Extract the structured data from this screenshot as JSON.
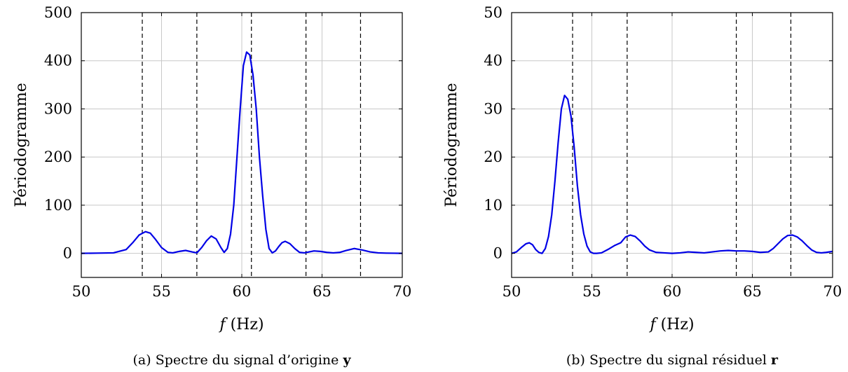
{
  "chart_data": [
    {
      "type": "line",
      "ylabel": "Périodogramme",
      "xlabel_var": "f",
      "xlabel_unit": " (Hz)",
      "caption_prefix": "(a) Spectre du signal d’origine ",
      "caption_symbol": "y",
      "xlim": [
        50,
        70
      ],
      "ylim": [
        -50,
        500
      ],
      "xticks": [
        50,
        55,
        60,
        65,
        70
      ],
      "yticks": [
        0,
        100,
        200,
        300,
        400,
        500
      ],
      "grid": true,
      "line_color": "#0000e6",
      "dashed_lines_x": [
        53.8,
        57.2,
        60.6,
        64.0,
        67.4
      ],
      "series": [
        {
          "x": [
            50,
            51,
            52,
            52.8,
            53.2,
            53.6,
            54.0,
            54.3,
            54.6,
            55.0,
            55.4,
            55.7,
            56.1,
            56.5,
            56.9,
            57.2,
            57.5,
            57.8,
            58.1,
            58.4,
            58.7,
            58.9,
            59.1,
            59.3,
            59.5,
            59.7,
            59.9,
            60.1,
            60.3,
            60.5,
            60.7,
            60.9,
            61.1,
            61.3,
            61.5,
            61.7,
            61.9,
            62.1,
            62.3,
            62.5,
            62.7,
            63.0,
            63.3,
            63.6,
            63.9,
            64.2,
            64.5,
            64.9,
            65.3,
            65.7,
            66.1,
            66.5,
            67.0,
            67.5,
            68.0,
            68.5,
            69.0,
            69.5,
            70
          ],
          "y": [
            0,
            0.5,
            1,
            8,
            22,
            38,
            45,
            42,
            30,
            12,
            2,
            1,
            4,
            6,
            3,
            1,
            12,
            26,
            36,
            30,
            12,
            2,
            10,
            40,
            100,
            200,
            300,
            390,
            418,
            412,
            370,
            300,
            200,
            120,
            50,
            10,
            1,
            5,
            14,
            22,
            25,
            20,
            10,
            2,
            1,
            3,
            5,
            4,
            2,
            1,
            2,
            6,
            10,
            7,
            3,
            1,
            0.5,
            0.3,
            0
          ]
        }
      ]
    },
    {
      "type": "line",
      "ylabel": "Périodogramme",
      "xlabel_var": "f",
      "xlabel_unit": " (Hz)",
      "caption_prefix": "(b) Spectre du signal résiduel ",
      "caption_symbol": "r",
      "xlim": [
        50,
        70
      ],
      "ylim": [
        -5,
        50
      ],
      "xticks": [
        50,
        55,
        60,
        65,
        70
      ],
      "yticks": [
        0,
        10,
        20,
        30,
        40,
        50
      ],
      "grid": true,
      "line_color": "#0000e6",
      "dashed_lines_x": [
        53.8,
        57.2,
        64.0,
        67.4
      ],
      "series": [
        {
          "x": [
            50,
            50.3,
            50.6,
            50.9,
            51.1,
            51.3,
            51.5,
            51.7,
            51.9,
            52.1,
            52.3,
            52.5,
            52.7,
            52.9,
            53.1,
            53.3,
            53.5,
            53.7,
            53.9,
            54.1,
            54.3,
            54.5,
            54.7,
            54.9,
            55.1,
            55.3,
            55.6,
            56.0,
            56.4,
            56.8,
            57.1,
            57.4,
            57.7,
            58.0,
            58.3,
            58.6,
            59.0,
            59.5,
            60.0,
            60.5,
            61.0,
            61.5,
            62.0,
            62.5,
            63.0,
            63.5,
            64.0,
            64.5,
            65.0,
            65.5,
            66.0,
            66.3,
            66.6,
            66.9,
            67.2,
            67.5,
            67.8,
            68.1,
            68.4,
            68.7,
            69.0,
            69.3,
            69.6,
            70
          ],
          "y": [
            0,
            0.3,
            1.2,
            2.0,
            2.2,
            1.8,
            0.8,
            0.2,
            0,
            1.0,
            3.5,
            8,
            15,
            23,
            30,
            32.8,
            32,
            28.5,
            22,
            14,
            8,
            4,
            1.5,
            0.3,
            0,
            0,
            0.1,
            0.8,
            1.6,
            2.2,
            3.4,
            3.8,
            3.5,
            2.6,
            1.5,
            0.7,
            0.2,
            0.1,
            0,
            0.1,
            0.3,
            0.2,
            0.1,
            0.3,
            0.5,
            0.6,
            0.5,
            0.5,
            0.4,
            0.2,
            0.3,
            1.0,
            2.0,
            3.0,
            3.7,
            3.8,
            3.4,
            2.6,
            1.6,
            0.7,
            0.2,
            0.1,
            0.2,
            0.4
          ]
        }
      ]
    }
  ]
}
